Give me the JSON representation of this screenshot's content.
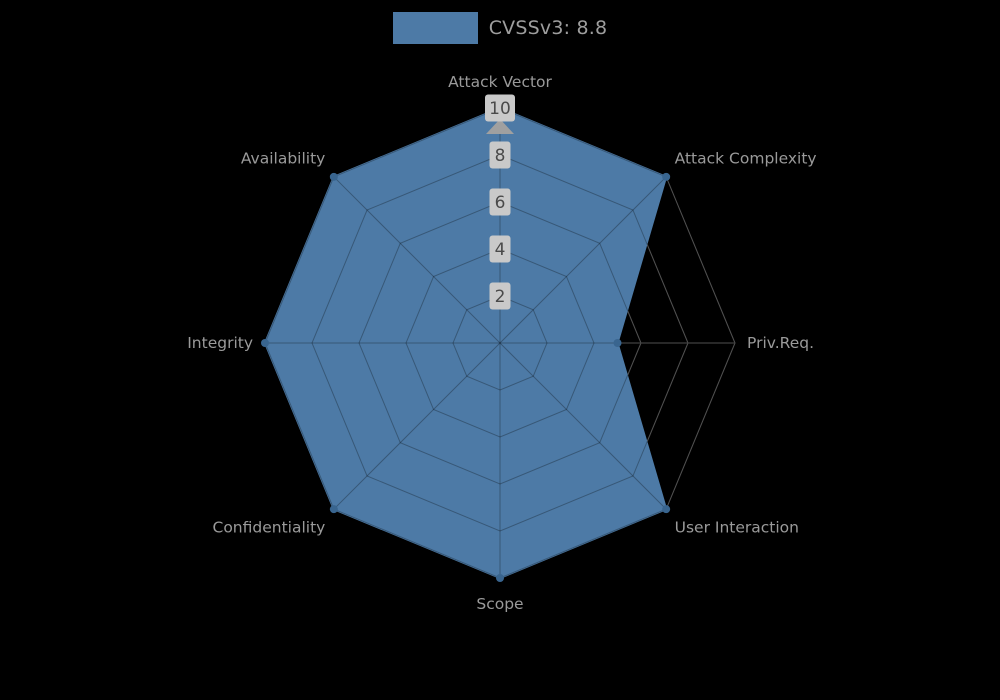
{
  "legend": {
    "label": "CVSSv3: 8.8",
    "swatch_color": "#4d7aa6"
  },
  "colors": {
    "background": "#000000",
    "fill": "#4d7aa6",
    "stroke": "#4d7aa6",
    "marker": "#39658f",
    "grid_under": "#6f6f6f",
    "grid_over": "rgba(0,0,0,0.28)",
    "axis_label": "#9a9a9a",
    "tick_box": "#c9c9c9",
    "tick_text": "#4a4a4a",
    "axis_arrow": "#a0a0a0"
  },
  "chart_data": {
    "type": "radar",
    "title": "CVSSv3: 8.8",
    "axes": [
      "Attack Vector",
      "Attack Complexity",
      "Priv.Req.",
      "User Interaction",
      "Scope",
      "Confidentiality",
      "Integrity",
      "Availability"
    ],
    "series": [
      {
        "name": "CVSSv3: 8.8",
        "values": [
          10,
          10,
          5,
          10,
          10,
          10,
          10,
          10
        ]
      }
    ],
    "ticks": [
      2,
      4,
      6,
      8,
      10
    ],
    "max": 10,
    "rings": 5,
    "grid": "spider-web",
    "legend_position": "top"
  }
}
